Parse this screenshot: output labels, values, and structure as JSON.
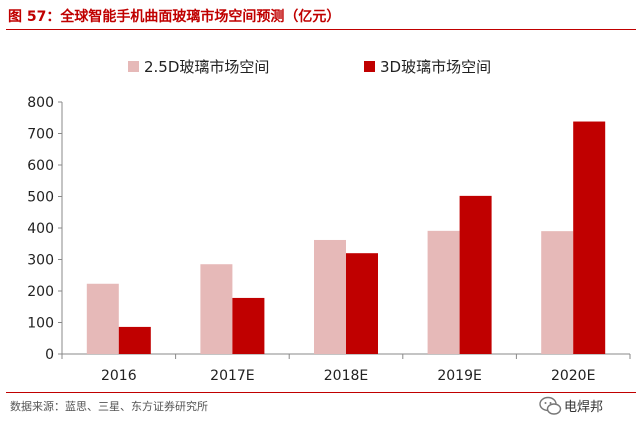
{
  "header": {
    "title": "图 57：全球智能手机曲面玻璃市场空间预测（亿元）"
  },
  "footer": {
    "source": "数据来源：蓝思、三星、东方证券研究所",
    "watermark": "电焊邦",
    "watermark_icon": "wechat-icon"
  },
  "colors": {
    "accent": "#c00000",
    "series_light": "#e6b9b8",
    "series_dark": "#c00000"
  },
  "chart_data": {
    "type": "bar",
    "title": "全球智能手机曲面玻璃市场空间预测（亿元）",
    "xlabel": "",
    "ylabel": "",
    "categories": [
      "2016",
      "2017E",
      "2018E",
      "2019E",
      "2020E"
    ],
    "series": [
      {
        "name": "2.5D玻璃市场空间",
        "values": [
          223,
          285,
          362,
          391,
          390
        ]
      },
      {
        "name": "3D玻璃市场空间",
        "values": [
          86,
          178,
          320,
          502,
          738
        ]
      }
    ],
    "ylim": [
      0,
      800
    ],
    "yticks": [
      0,
      100,
      200,
      300,
      400,
      500,
      600,
      700,
      800
    ],
    "ytick_labels": [
      "0",
      "100",
      "200",
      "300",
      "400",
      "500",
      "600",
      "700",
      "800"
    ],
    "grid": false,
    "legend_position": "top"
  }
}
